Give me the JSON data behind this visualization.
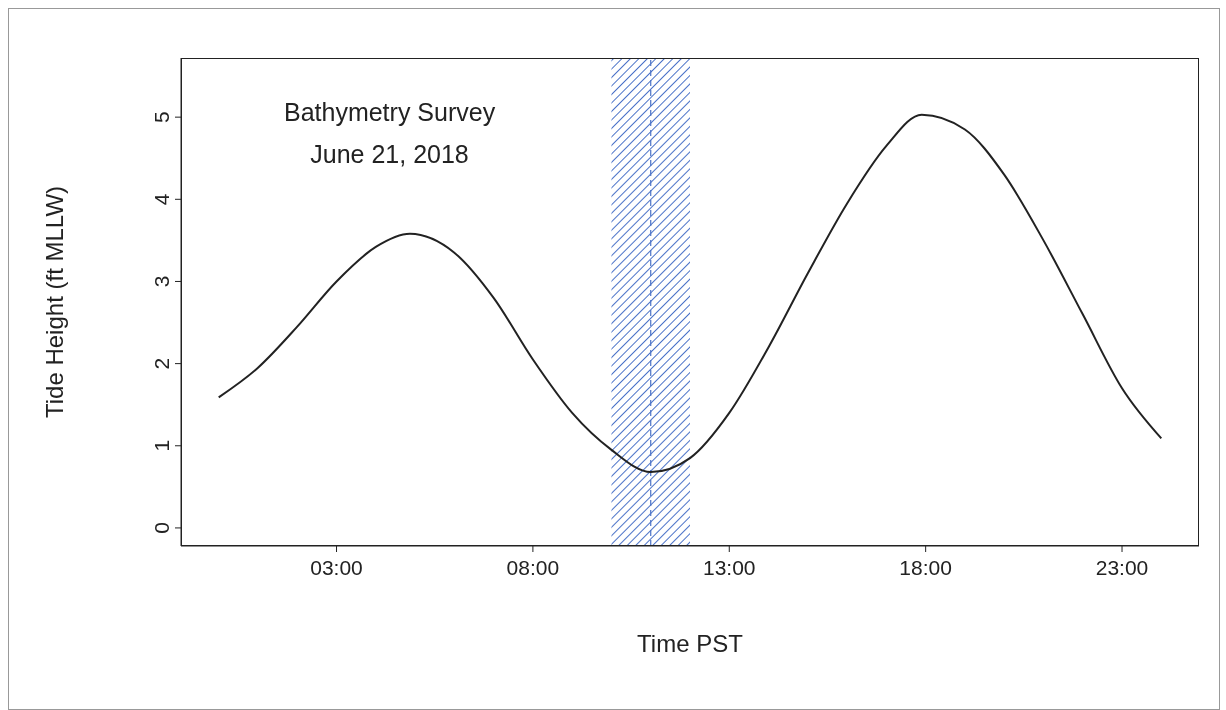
{
  "chart_data": {
    "type": "line",
    "xlabel": "Time PST",
    "ylabel": "Tide Height (ft MLLW)",
    "annotations": [
      "Bathymetry Survey",
      "June 21, 2018"
    ],
    "x": [
      0,
      1,
      2,
      3,
      4,
      4.87,
      6,
      7,
      8,
      9,
      10,
      11,
      12,
      13,
      14,
      15,
      16,
      17,
      17.9,
      19,
      20,
      21,
      22,
      23,
      24
    ],
    "series": [
      {
        "color": "#222222",
        "values": [
          1.59,
          1.95,
          2.45,
          3.0,
          3.42,
          3.58,
          3.35,
          2.8,
          2.05,
          1.4,
          0.95,
          0.68,
          0.85,
          1.4,
          2.2,
          3.1,
          3.95,
          4.65,
          5.03,
          4.85,
          4.3,
          3.5,
          2.6,
          1.7,
          1.09
        ]
      }
    ],
    "xlim": [
      -0.96,
      24.96
    ],
    "xticks": [
      {
        "value": 3,
        "label": "03:00"
      },
      {
        "value": 8,
        "label": "08:00"
      },
      {
        "value": 13,
        "label": "13:00"
      },
      {
        "value": 18,
        "label": "18:00"
      },
      {
        "value": 23,
        "label": "23:00"
      }
    ],
    "ylim": [
      -0.22,
      5.72
    ],
    "yticks": [
      0,
      1,
      2,
      3,
      4,
      5
    ],
    "bands": [
      {
        "axis": "x",
        "from": 10,
        "to": 12,
        "color": "#4a72c8"
      }
    ],
    "ref_lines": [
      {
        "axis": "x",
        "value": 11,
        "color": "#4a72c8",
        "line_style": "dashed"
      }
    ],
    "grid": false,
    "marker": "none",
    "line_style": "solid"
  }
}
